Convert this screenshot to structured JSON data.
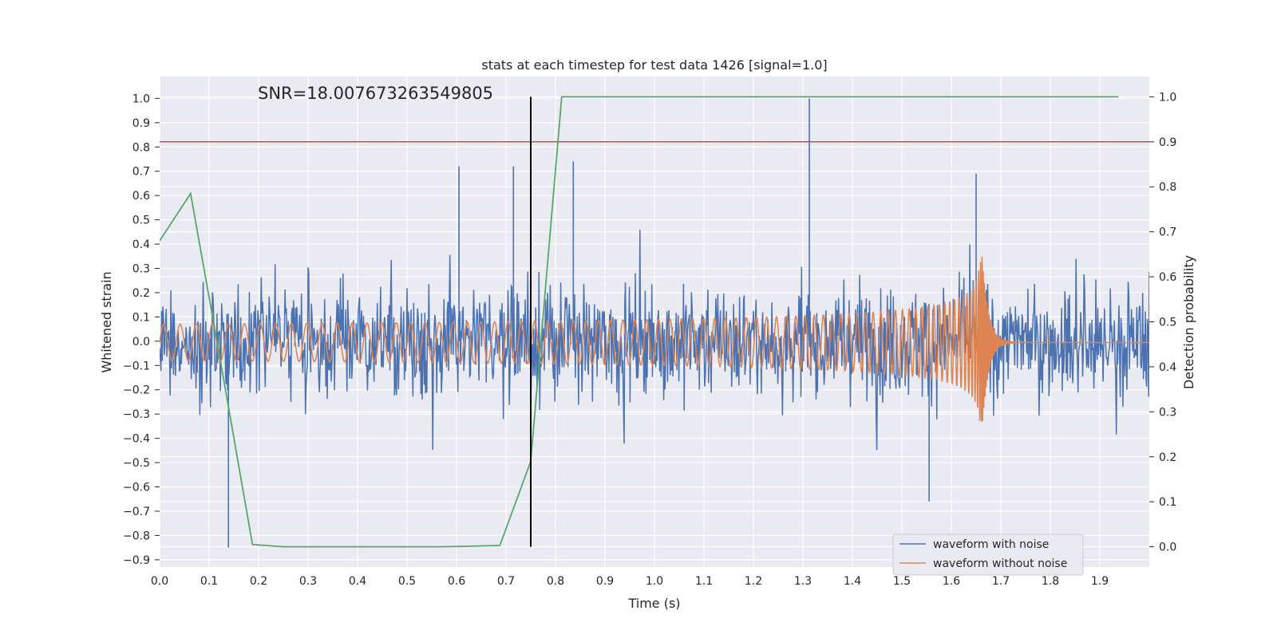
{
  "chart_data": {
    "type": "line",
    "title": "stats at each timestep for test data 1426 [signal=1.0]",
    "xlabel": "Time (s)",
    "ylabel": "Whitened strain",
    "ylabel_right": "Detection probability",
    "xlim": [
      0.0,
      2.0
    ],
    "ylim": [
      -0.93,
      1.09
    ],
    "ylim_right": [
      -0.045,
      1.045
    ],
    "x_ticks": [
      "0.0",
      "0.1",
      "0.2",
      "0.3",
      "0.4",
      "0.5",
      "0.6",
      "0.7",
      "0.8",
      "0.9",
      "1.0",
      "1.1",
      "1.2",
      "1.3",
      "1.4",
      "1.5",
      "1.6",
      "1.7",
      "1.8",
      "1.9"
    ],
    "y_ticks": [
      "−0.9",
      "−0.8",
      "−0.7",
      "−0.6",
      "−0.5",
      "−0.4",
      "−0.3",
      "−0.2",
      "−0.1",
      "0.0",
      "0.1",
      "0.2",
      "0.3",
      "0.4",
      "0.5",
      "0.6",
      "0.7",
      "0.8",
      "0.9",
      "1.0"
    ],
    "y_ticks_right": [
      "0.0",
      "0.1",
      "0.2",
      "0.3",
      "0.4",
      "0.5",
      "0.6",
      "0.7",
      "0.8",
      "0.9",
      "1.0"
    ],
    "grid": true,
    "annotation": "SNR=18.007673263549805",
    "legend": {
      "placement": "lower-right",
      "entries": [
        "waveform with noise",
        "waveform without noise"
      ]
    },
    "series": [
      {
        "name": "waveform with noise",
        "axis": "left",
        "color": "#4c72b0",
        "description": "noisy whitened strain, approx. amplitude ±0.35 with spikes up to 1.0 at t≈1.313 and down to -0.85 at t≈0.139",
        "t_range": [
          0.0,
          2.0
        ],
        "spikes": [
          [
            0.139,
            -0.85
          ],
          [
            0.605,
            0.72
          ],
          [
            0.715,
            0.72
          ],
          [
            0.836,
            0.74
          ],
          [
            1.313,
            1.0
          ],
          [
            1.555,
            -0.66
          ],
          [
            1.65,
            0.69
          ]
        ]
      },
      {
        "name": "waveform without noise",
        "axis": "left",
        "color": "#dd8452",
        "description": "clean chirp signal: amplitude ~0.07 rising to ~0.38 peak near t=1.66, ringdown to 0 by t≈1.72"
      },
      {
        "name": "detection probability",
        "axis": "right",
        "color": "#55a868",
        "x": [
          0.0,
          0.0625,
          0.125,
          0.1875,
          0.25,
          0.3125,
          0.375,
          0.4375,
          0.5,
          0.5625,
          0.625,
          0.6875,
          0.75,
          0.8125,
          0.875,
          0.9375,
          1.0,
          1.0625,
          1.125,
          1.1875,
          1.25,
          1.3125,
          1.375,
          1.4375,
          1.5,
          1.5625,
          1.625,
          1.6875,
          1.75,
          1.8125,
          1.875,
          1.9375
        ],
        "values": [
          0.68,
          0.785,
          0.4,
          0.005,
          0.0,
          0.0,
          0.0,
          0.0,
          0.0,
          0.0,
          0.001,
          0.003,
          0.19,
          1.0,
          1.0,
          1.0,
          1.0,
          1.0,
          1.0,
          1.0,
          1.0,
          1.0,
          1.0,
          1.0,
          1.0,
          1.0,
          1.0,
          1.0,
          1.0,
          1.0,
          1.0,
          1.0
        ]
      }
    ],
    "hlines": [
      {
        "name": "threshold",
        "axis": "right",
        "value": 0.9,
        "color": "#c44e52"
      }
    ],
    "vlines": [
      {
        "name": "marker",
        "x": 0.75,
        "axis": "right",
        "y_range": [
          0.0,
          1.0
        ],
        "color": "#000000"
      }
    ]
  }
}
